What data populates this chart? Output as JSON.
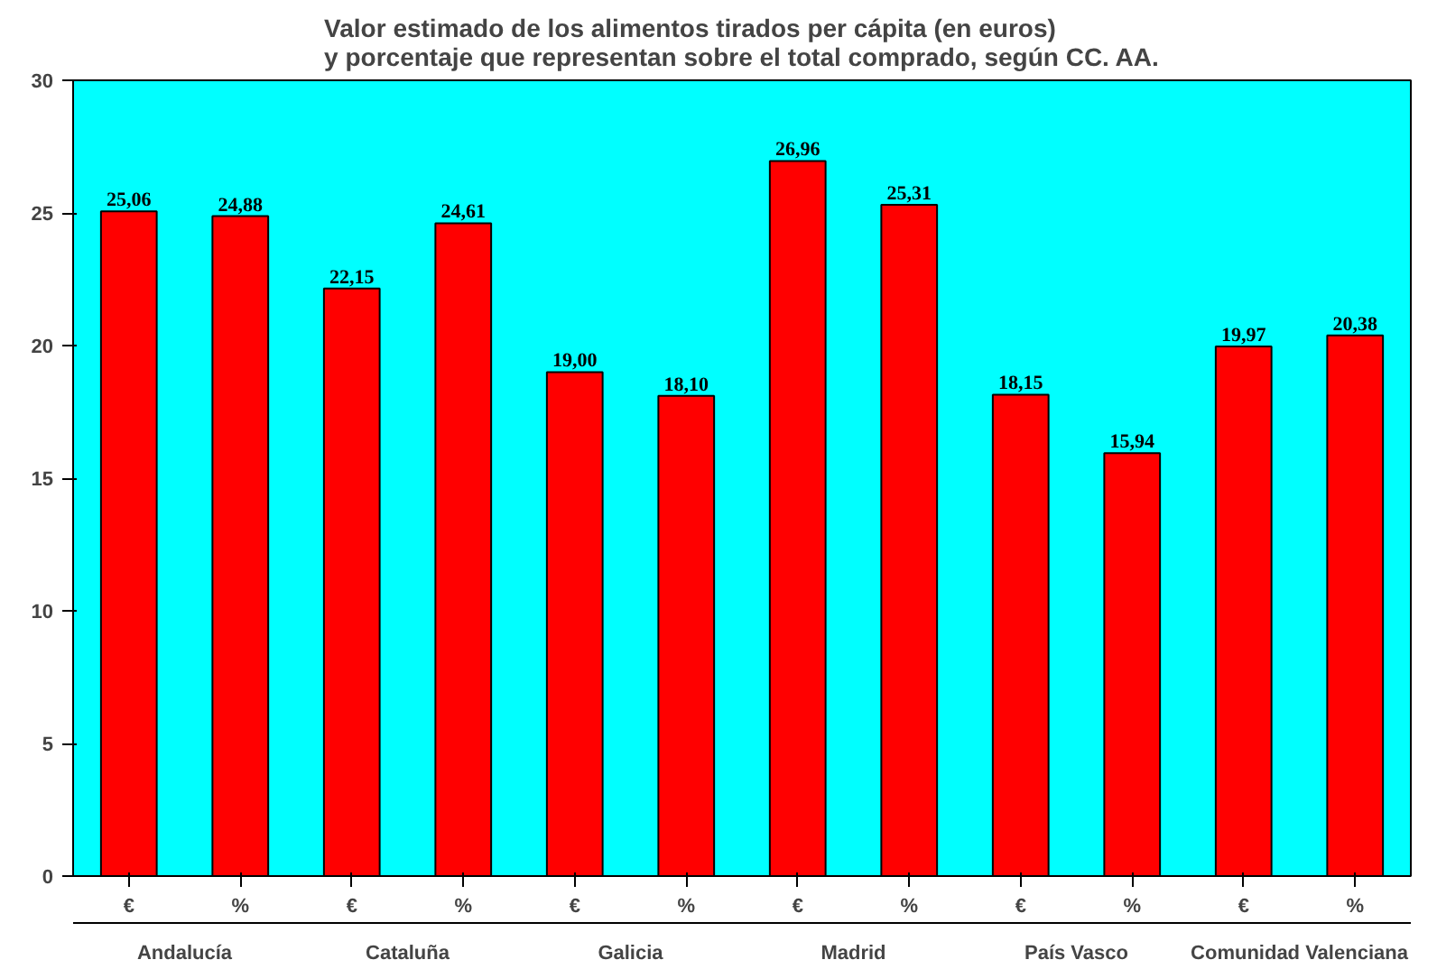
{
  "chart_data": {
    "type": "bar",
    "title": "Valor estimado de los alimentos tirados per cápita (en euros)\ny porcentaje que representan sobre el total comprado, según CC. AA.",
    "categories": [
      "€",
      "%",
      "€",
      "%",
      "€",
      "%",
      "€",
      "%",
      "€",
      "%",
      "€",
      "%"
    ],
    "values": [
      25.06,
      24.88,
      22.15,
      24.61,
      19.0,
      18.1,
      26.96,
      25.31,
      18.15,
      15.94,
      19.97,
      20.38
    ],
    "value_labels": [
      "25,06",
      "24,88",
      "22,15",
      "24,61",
      "19,00",
      "18,10",
      "26,96",
      "25,31",
      "18,15",
      "15,94",
      "19,97",
      "20,38"
    ],
    "color": "#ff0000",
    "annotations": [
      "Andalucía",
      "Cataluña",
      "Galicia",
      "Madrid",
      "País Vasco",
      "Comunidad Valenciana"
    ],
    "ylim": [
      0,
      30
    ],
    "yticks": [
      0,
      5,
      10,
      15,
      20,
      25,
      30
    ],
    "grid": false
  }
}
